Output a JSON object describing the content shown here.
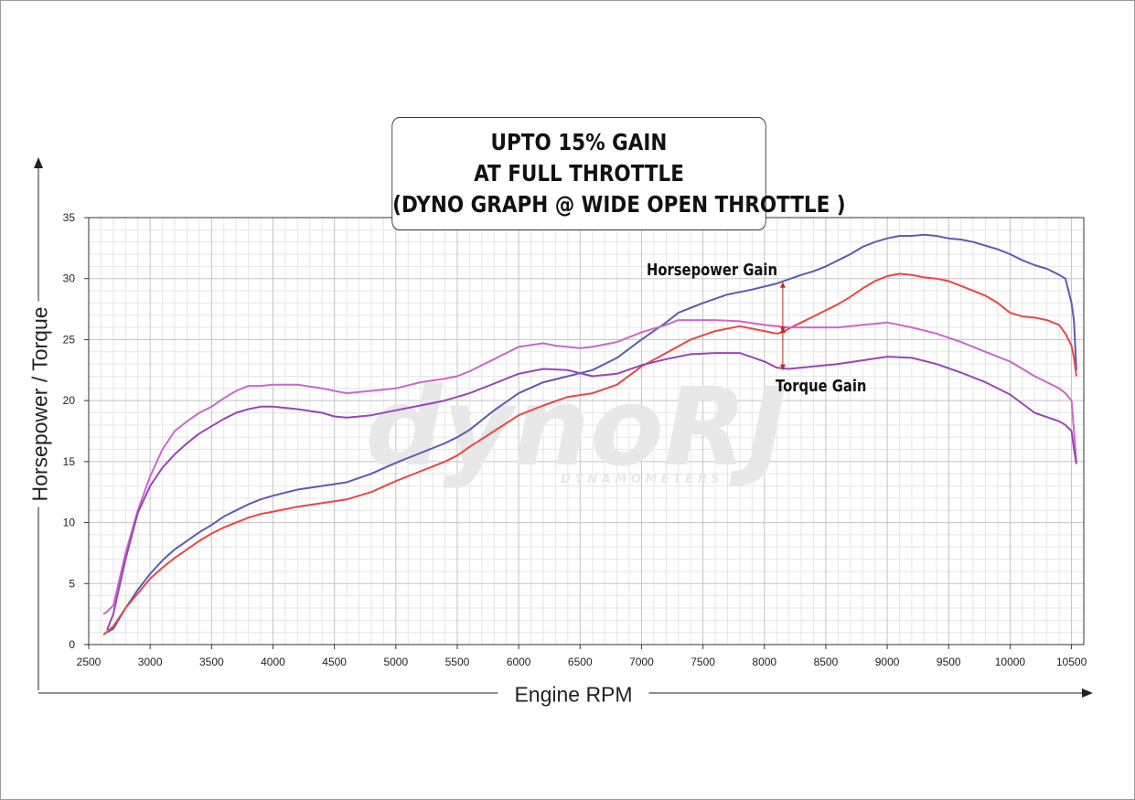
{
  "chart_data": {
    "type": "line",
    "title_lines": [
      "UPTO 15% GAIN",
      "AT FULL THROTTLE",
      "(DYNO GRAPH @ WIDE OPEN THROTTLE )"
    ],
    "xlabel": "Engine RPM",
    "ylabel": "Horsepower / Torque",
    "xlim": [
      2500,
      10600
    ],
    "ylim": [
      0,
      35
    ],
    "xticks": [
      2500,
      3000,
      3500,
      4000,
      4500,
      5000,
      5500,
      6000,
      6500,
      7000,
      7500,
      8000,
      8500,
      9000,
      9500,
      10000,
      10500
    ],
    "xtick_labels": [
      "2500",
      "3000",
      "3500",
      "4000",
      "4500",
      "5000",
      "5500",
      "6000",
      "6500",
      "7000",
      "7500",
      "8000",
      "8500",
      "9000",
      "9500",
      "10000",
      "10500"
    ],
    "yticks": [
      0,
      5,
      10,
      15,
      20,
      25,
      30,
      35
    ],
    "ytick_labels": [
      "0",
      "5",
      "10",
      "15",
      "20",
      "25",
      "30",
      "35"
    ],
    "grid": true,
    "watermark": {
      "text": "dynoRJ",
      "subtext": "D Y N A M O M E T E R S"
    },
    "annotations": {
      "hp_gain": {
        "text": "Horsepower Gain",
        "x": 8150,
        "y_from": 25.6,
        "y_to": 29.7
      },
      "torque_gain": {
        "text": "Torque Gain",
        "x": 8150,
        "y_from": 22.5,
        "y_to": 26.0
      }
    },
    "series": [
      {
        "color": "#5b5bb5",
        "x": [
          2650,
          2700,
          2800,
          2900,
          3000,
          3100,
          3200,
          3300,
          3400,
          3500,
          3600,
          3700,
          3800,
          3900,
          4000,
          4200,
          4400,
          4600,
          4800,
          5000,
          5200,
          5400,
          5500,
          5600,
          5800,
          6000,
          6200,
          6400,
          6600,
          6800,
          7000,
          7200,
          7300,
          7500,
          7700,
          7900,
          8100,
          8300,
          8400,
          8500,
          8600,
          8700,
          8800,
          8900,
          9000,
          9100,
          9200,
          9300,
          9400,
          9500,
          9600,
          9700,
          9800,
          9900,
          10000,
          10100,
          10200,
          10300,
          10400,
          10450,
          10500,
          10520,
          10540
        ],
        "values": [
          1.0,
          1.3,
          3.0,
          4.5,
          5.8,
          6.9,
          7.8,
          8.5,
          9.2,
          9.8,
          10.5,
          11.0,
          11.5,
          11.9,
          12.2,
          12.7,
          13.0,
          13.3,
          14.0,
          14.9,
          15.7,
          16.5,
          17.0,
          17.6,
          19.2,
          20.6,
          21.5,
          22.0,
          22.5,
          23.5,
          25.0,
          26.4,
          27.2,
          28.0,
          28.7,
          29.1,
          29.6,
          30.3,
          30.6,
          31.0,
          31.5,
          32.0,
          32.6,
          33.0,
          33.3,
          33.5,
          33.5,
          33.6,
          33.5,
          33.3,
          33.2,
          33.0,
          32.7,
          32.4,
          32.0,
          31.5,
          31.1,
          30.8,
          30.3,
          30.0,
          28.0,
          26.5,
          22.5
        ]
      },
      {
        "color": "#ee4444",
        "x": [
          2620,
          2700,
          2800,
          2900,
          3000,
          3100,
          3200,
          3300,
          3400,
          3500,
          3600,
          3700,
          3800,
          3900,
          4000,
          4200,
          4400,
          4600,
          4800,
          5000,
          5200,
          5400,
          5500,
          5600,
          5800,
          6000,
          6200,
          6400,
          6600,
          6800,
          7000,
          7200,
          7400,
          7600,
          7800,
          8000,
          8100,
          8150,
          8200,
          8300,
          8400,
          8500,
          8600,
          8700,
          8800,
          8900,
          9000,
          9100,
          9200,
          9300,
          9400,
          9500,
          9600,
          9700,
          9800,
          9900,
          10000,
          10100,
          10200,
          10300,
          10400,
          10450,
          10500,
          10520,
          10540
        ],
        "values": [
          0.8,
          1.5,
          3.0,
          4.2,
          5.4,
          6.3,
          7.1,
          7.8,
          8.5,
          9.1,
          9.6,
          10.0,
          10.4,
          10.7,
          10.9,
          11.3,
          11.6,
          11.9,
          12.5,
          13.4,
          14.2,
          15.0,
          15.5,
          16.2,
          17.5,
          18.8,
          19.6,
          20.3,
          20.6,
          21.3,
          22.8,
          23.9,
          25.0,
          25.7,
          26.1,
          25.7,
          25.5,
          25.6,
          25.9,
          26.4,
          26.9,
          27.4,
          27.9,
          28.5,
          29.2,
          29.8,
          30.2,
          30.4,
          30.3,
          30.1,
          30.0,
          29.8,
          29.4,
          29.0,
          28.6,
          28.0,
          27.2,
          26.9,
          26.8,
          26.6,
          26.2,
          25.5,
          24.5,
          23.5,
          22.0
        ]
      },
      {
        "color": "#cc66cc",
        "x": [
          2620,
          2650,
          2700,
          2800,
          2900,
          3000,
          3100,
          3200,
          3300,
          3400,
          3500,
          3600,
          3700,
          3800,
          3900,
          4000,
          4200,
          4400,
          4500,
          4600,
          4800,
          5000,
          5200,
          5400,
          5500,
          5600,
          5800,
          6000,
          6200,
          6300,
          6500,
          6600,
          6800,
          7000,
          7200,
          7300,
          7400,
          7600,
          7800,
          8000,
          8200,
          8400,
          8600,
          8800,
          9000,
          9200,
          9400,
          9600,
          9800,
          10000,
          10200,
          10400,
          10450,
          10500,
          10520,
          10540
        ],
        "values": [
          2.5,
          2.7,
          3.2,
          7.5,
          11.0,
          13.8,
          16.0,
          17.5,
          18.3,
          19.0,
          19.5,
          20.2,
          20.8,
          21.2,
          21.2,
          21.3,
          21.3,
          21.0,
          20.8,
          20.6,
          20.8,
          21.0,
          21.5,
          21.8,
          22.0,
          22.4,
          23.4,
          24.4,
          24.7,
          24.5,
          24.3,
          24.4,
          24.8,
          25.6,
          26.2,
          26.6,
          26.6,
          26.6,
          26.5,
          26.2,
          26.0,
          26.0,
          26.0,
          26.2,
          26.4,
          26.0,
          25.5,
          24.8,
          24.0,
          23.2,
          22.0,
          21.0,
          20.6,
          20.0,
          17.5,
          15.0
        ]
      },
      {
        "color": "#9944bb",
        "x": [
          2650,
          2700,
          2800,
          2900,
          3000,
          3100,
          3200,
          3300,
          3400,
          3500,
          3600,
          3700,
          3800,
          3900,
          4000,
          4200,
          4400,
          4500,
          4600,
          4800,
          5000,
          5200,
          5400,
          5500,
          5600,
          5800,
          6000,
          6200,
          6400,
          6600,
          6800,
          7000,
          7200,
          7400,
          7600,
          7800,
          8000,
          8100,
          8200,
          8400,
          8600,
          8800,
          9000,
          9200,
          9400,
          9600,
          9800,
          10000,
          10200,
          10400,
          10450,
          10500,
          10520,
          10540
        ],
        "values": [
          1.2,
          2.5,
          7.0,
          10.8,
          13.0,
          14.5,
          15.6,
          16.5,
          17.3,
          17.9,
          18.5,
          19.0,
          19.3,
          19.5,
          19.5,
          19.3,
          19.0,
          18.7,
          18.6,
          18.8,
          19.2,
          19.6,
          20.0,
          20.3,
          20.6,
          21.4,
          22.2,
          22.6,
          22.5,
          22.0,
          22.2,
          22.9,
          23.4,
          23.8,
          23.9,
          23.9,
          23.2,
          22.7,
          22.6,
          22.8,
          23.0,
          23.3,
          23.6,
          23.5,
          23.0,
          22.3,
          21.5,
          20.5,
          19.0,
          18.3,
          18.0,
          17.5,
          16.0,
          14.8
        ]
      }
    ]
  }
}
